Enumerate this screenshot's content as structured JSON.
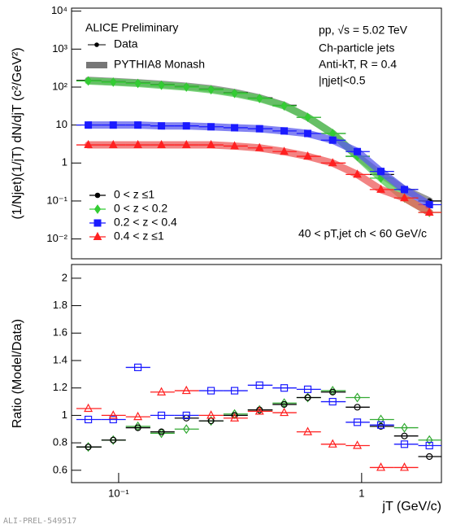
{
  "chart_data": [
    {
      "type": "line",
      "log_x": true,
      "log_y": true,
      "ylabel": "(1/Njet)(1/jT) dN/djT (c²/GeV²)",
      "annotations": {
        "experiment": "ALICE Preliminary",
        "data": "Data",
        "model": "PYTHIA8 Monash",
        "system": "pp, √s = 5.02 TeV",
        "jets": "Ch-particle jets",
        "algo": "Anti-kT, R = 0.4",
        "eta": "|ηjet|<0.5",
        "pt": "40 < pT,jet ch < 60 GeV/c"
      },
      "x": [
        0.075,
        0.095,
        0.12,
        0.15,
        0.19,
        0.24,
        0.3,
        0.38,
        0.48,
        0.6,
        0.76,
        0.96,
        1.2,
        1.5,
        1.9
      ],
      "bin_edges": [
        0.067,
        0.085,
        0.107,
        0.135,
        0.17,
        0.214,
        0.27,
        0.34,
        0.43,
        0.54,
        0.68,
        0.86,
        1.08,
        1.36,
        1.71,
        2.13
      ],
      "xlim": [
        0.064,
        2.13
      ],
      "ylim": [
        0.003,
        12000
      ],
      "yticks": [
        {
          "value": 0.01,
          "label": "10⁻²"
        },
        {
          "value": 0.1,
          "label": "10⁻¹"
        },
        1,
        10,
        {
          "value": 100,
          "label": "10²"
        },
        {
          "value": 1000,
          "label": "10³"
        },
        {
          "value": 10000,
          "label": "10⁴"
        }
      ],
      "legend": "lower left",
      "series": [
        {
          "name": "0 < z ≤1",
          "color": "#000000",
          "band_color": "#777777",
          "marker": "circle",
          "values": [
            150,
            140,
            130,
            118,
            105,
            90,
            72,
            52,
            33,
            16,
            6,
            1.5,
            0.5,
            0.2,
            0.1
          ]
        },
        {
          "name": "0 < z < 0.2",
          "color": "#33cc33",
          "band_color": "#55cc55",
          "marker": "diamond",
          "values": [
            145,
            135,
            125,
            112,
            100,
            85,
            68,
            50,
            32,
            16,
            6,
            1.5,
            0.4,
            0.12,
            0.05
          ]
        },
        {
          "name": "0.2 < z < 0.4",
          "color": "#1a1aff",
          "band_color": "#5a5aee",
          "marker": "square",
          "values": [
            10,
            10,
            10,
            9.5,
            9.5,
            9,
            8.5,
            8,
            7,
            6,
            4,
            2,
            0.6,
            0.2,
            0.08
          ]
        },
        {
          "name": "0.4 < z ≤1",
          "color": "#ff2020",
          "band_color": "#ee5a5a",
          "marker": "triangle",
          "values": [
            3,
            3,
            3,
            3,
            3,
            3,
            2.8,
            2.5,
            2,
            1.5,
            1,
            0.5,
            0.2,
            0.12,
            0.05
          ]
        }
      ]
    },
    {
      "type": "line",
      "log_x": true,
      "ylabel": "Ratio (Model/Data)",
      "xlabel": "jT (GeV/c)",
      "footer": "ALI-PREL-549517",
      "x": [
        0.075,
        0.095,
        0.12,
        0.15,
        0.19,
        0.24,
        0.3,
        0.38,
        0.48,
        0.6,
        0.76,
        0.96,
        1.2,
        1.5,
        1.9
      ],
      "bin_edges": [
        0.067,
        0.085,
        0.107,
        0.135,
        0.17,
        0.214,
        0.27,
        0.34,
        0.43,
        0.54,
        0.68,
        0.86,
        1.08,
        1.36,
        1.71,
        2.13
      ],
      "xlim": [
        0.064,
        2.13
      ],
      "ylim": [
        0.51,
        2.1
      ],
      "xticks": [
        {
          "value": 0.1,
          "label": "10⁻¹"
        },
        1
      ],
      "yticks": [
        0.6,
        0.8,
        1,
        1.2,
        1.4,
        1.6,
        1.8,
        2
      ],
      "series": [
        {
          "color": "#33aa33",
          "marker": "diamond",
          "values": [
            0.77,
            0.82,
            0.92,
            0.87,
            0.9,
            0.96,
            1.01,
            1.04,
            1.09,
            1.13,
            1.18,
            1.13,
            0.97,
            0.91,
            0.82
          ]
        },
        {
          "color": "#000000",
          "marker": "circle",
          "values": [
            0.77,
            0.82,
            0.91,
            0.88,
            0.98,
            0.96,
            1.0,
            1.04,
            1.08,
            1.13,
            1.17,
            1.06,
            0.92,
            0.85,
            0.7
          ]
        },
        {
          "color": "#1a1aff",
          "marker": "square",
          "values": [
            0.97,
            0.97,
            1.35,
            1.0,
            1.0,
            1.18,
            1.18,
            1.22,
            1.2,
            1.19,
            1.1,
            0.95,
            0.93,
            0.79,
            0.78
          ]
        },
        {
          "color": "#ff2020",
          "marker": "triangle",
          "values": [
            1.05,
            1.0,
            0.99,
            1.17,
            1.18,
            1.0,
            0.98,
            1.03,
            1.02,
            0.88,
            0.79,
            0.78,
            0.62,
            0.62,
            null
          ]
        }
      ]
    }
  ]
}
